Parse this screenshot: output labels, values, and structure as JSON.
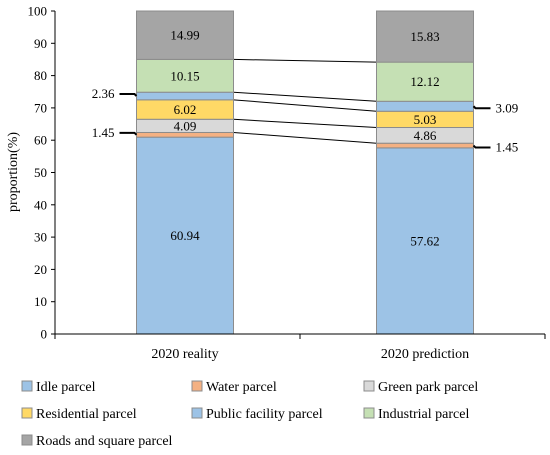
{
  "chart_data": {
    "type": "bar",
    "stacked": true,
    "categories": [
      "2020 reality",
      "2020 prediction"
    ],
    "ylabel": "proportion(%)",
    "xlabel": "",
    "ylim": [
      0,
      100
    ],
    "yticks": [
      0,
      10,
      20,
      30,
      40,
      50,
      60,
      70,
      80,
      90,
      100
    ],
    "legend_position": "bottom",
    "series": [
      {
        "name": "Idle parcel",
        "values": [
          60.94,
          57.62
        ],
        "color": "#9dc3e6"
      },
      {
        "name": "Water parcel",
        "values": [
          1.45,
          1.45
        ],
        "color": "#f4b183"
      },
      {
        "name": "Green park parcel",
        "values": [
          4.09,
          4.86
        ],
        "color": "#d9d9d9"
      },
      {
        "name": "Residential parcel",
        "values": [
          6.02,
          5.03
        ],
        "color": "#ffd966"
      },
      {
        "name": "Public facility parcel",
        "values": [
          2.36,
          3.09
        ],
        "color": "#9dc3e6"
      },
      {
        "name": "Industrial parcel",
        "values": [
          10.15,
          12.12
        ],
        "color": "#c5e0b4"
      },
      {
        "name": "Roads and square parcel",
        "values": [
          14.99,
          15.83
        ],
        "color": "#a5a5a5"
      }
    ],
    "callout_series": [
      "Public facility parcel",
      "Water parcel"
    ]
  }
}
